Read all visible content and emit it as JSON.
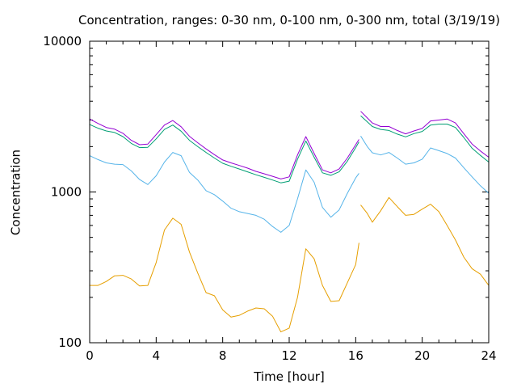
{
  "chart_data": {
    "type": "line",
    "title": "Concentration, ranges: 0-30 nm, 0-100 nm, 0-300 nm, total (3/19/19)",
    "xlabel": "Time [hour]",
    "ylabel": "Concentration",
    "xlim": [
      0,
      24
    ],
    "ylim": [
      100,
      10000
    ],
    "yscale": "log",
    "grid": false,
    "xticks": [
      0,
      4,
      8,
      12,
      16,
      20,
      24
    ],
    "xtick_labels": [
      "0",
      "4",
      "8",
      "12",
      "16",
      "20",
      "24"
    ],
    "yticks": [
      100,
      1000,
      10000
    ],
    "ytick_labels": [
      "100",
      "1000",
      "10000"
    ],
    "series": [
      {
        "color": "#e69f00",
        "segments": [
          {
            "x": [
              0,
              0.5,
              1,
              1.5,
              2,
              2.5,
              3,
              3.5,
              4,
              4.5,
              5,
              5.5,
              6,
              6.5,
              7,
              7.5,
              8,
              8.5,
              9,
              9.5,
              10,
              10.5,
              11,
              11.5,
              12,
              12.5,
              13,
              13.5,
              14,
              14.5,
              15,
              15.5,
              16,
              16.2
            ],
            "y": [
              240,
              240,
              255,
              278,
              280,
              265,
              238,
              240,
              340,
              560,
              670,
              610,
              400,
              290,
              215,
              205,
              165,
              148,
              152,
              162,
              170,
              168,
              150,
              118,
              125,
              200,
              420,
              360,
              240,
              188,
              190,
              250,
              330,
              460
            ]
          },
          {
            "x": [
              16.3,
              16.7,
              17,
              17.5,
              18,
              18.5,
              19,
              19.5,
              20,
              20.5,
              21,
              21.5,
              22,
              22.5,
              23,
              23.5,
              24
            ],
            "y": [
              820,
              720,
              630,
              750,
              920,
              800,
              700,
              710,
              770,
              830,
              740,
              600,
              480,
              370,
              310,
              285,
              240
            ]
          }
        ]
      },
      {
        "color": "#56b4e9",
        "segments": [
          {
            "x": [
              0,
              0.5,
              1,
              1.5,
              2,
              2.5,
              3,
              3.5,
              4,
              4.5,
              5,
              5.5,
              6,
              6.5,
              7,
              7.5,
              8,
              8.5,
              9,
              9.5,
              10,
              10.5,
              11,
              11.5,
              12,
              12.5,
              13,
              13.5,
              14,
              14.5,
              15,
              15.5,
              16,
              16.2
            ],
            "y": [
              1740,
              1640,
              1560,
              1530,
              1520,
              1380,
              1210,
              1120,
              1280,
              1580,
              1830,
              1740,
              1350,
              1200,
              1020,
              960,
              870,
              780,
              740,
              720,
              700,
              660,
              590,
              540,
              600,
              900,
              1400,
              1160,
              790,
              680,
              760,
              980,
              1240,
              1330
            ]
          },
          {
            "x": [
              16.3,
              16.7,
              17,
              17.5,
              18,
              18.5,
              19,
              19.5,
              20,
              20.5,
              21,
              21.5,
              22,
              22.5,
              23,
              23.5,
              24
            ],
            "y": [
              2350,
              2000,
              1820,
              1760,
              1830,
              1680,
              1530,
              1560,
              1650,
              1960,
              1880,
              1800,
              1680,
              1450,
              1260,
              1100,
              980
            ]
          }
        ]
      },
      {
        "color": "#009e73",
        "segments": [
          {
            "x": [
              0,
              0.5,
              1,
              1.5,
              2,
              2.5,
              3,
              3.5,
              4,
              4.5,
              5,
              5.5,
              6,
              6.5,
              7,
              7.5,
              8,
              8.5,
              9,
              9.5,
              10,
              10.5,
              11,
              11.5,
              12,
              12.5,
              13,
              13.5,
              14,
              14.5,
              15,
              15.5,
              16,
              16.2
            ],
            "y": [
              2800,
              2650,
              2540,
              2480,
              2330,
              2100,
              1970,
              1980,
              2250,
              2600,
              2780,
              2530,
              2200,
              2000,
              1830,
              1680,
              1550,
              1480,
              1420,
              1360,
              1300,
              1250,
              1200,
              1150,
              1180,
              1650,
              2180,
              1700,
              1340,
              1290,
              1360,
              1600,
              1970,
              2150
            ]
          },
          {
            "x": [
              16.3,
              16.7,
              17,
              17.5,
              18,
              18.5,
              19,
              19.5,
              20,
              20.5,
              21,
              21.5,
              22,
              22.5,
              23,
              23.5,
              24
            ],
            "y": [
              3200,
              2920,
              2720,
              2600,
              2560,
              2420,
              2320,
              2440,
              2520,
              2780,
              2820,
              2820,
              2680,
              2300,
              1950,
              1750,
              1580
            ]
          }
        ]
      },
      {
        "color": "#9400d3",
        "segments": [
          {
            "x": [
              0,
              0.5,
              1,
              1.5,
              2,
              2.5,
              3,
              3.5,
              4,
              4.5,
              5,
              5.5,
              6,
              6.5,
              7,
              7.5,
              8,
              8.5,
              9,
              9.5,
              10,
              10.5,
              11,
              11.5,
              12,
              12.5,
              13,
              13.5,
              14,
              14.5,
              15,
              15.5,
              16,
              16.2
            ],
            "y": [
              3050,
              2850,
              2680,
              2610,
              2450,
              2200,
              2060,
              2080,
              2400,
              2780,
              2980,
              2710,
              2340,
              2120,
              1930,
              1770,
              1630,
              1560,
              1500,
              1440,
              1370,
              1320,
              1270,
              1220,
              1260,
              1760,
              2330,
              1800,
              1400,
              1340,
              1420,
              1680,
              2060,
              2230
            ]
          },
          {
            "x": [
              16.3,
              16.7,
              17,
              17.5,
              18,
              18.5,
              19,
              19.5,
              20,
              20.5,
              21,
              21.5,
              22,
              22.5,
              23,
              23.5,
              24
            ],
            "y": [
              3430,
              3100,
              2870,
              2720,
              2720,
              2560,
              2430,
              2540,
              2640,
              2960,
              3000,
              3050,
              2870,
              2440,
              2080,
              1870,
              1700
            ]
          }
        ]
      }
    ]
  }
}
